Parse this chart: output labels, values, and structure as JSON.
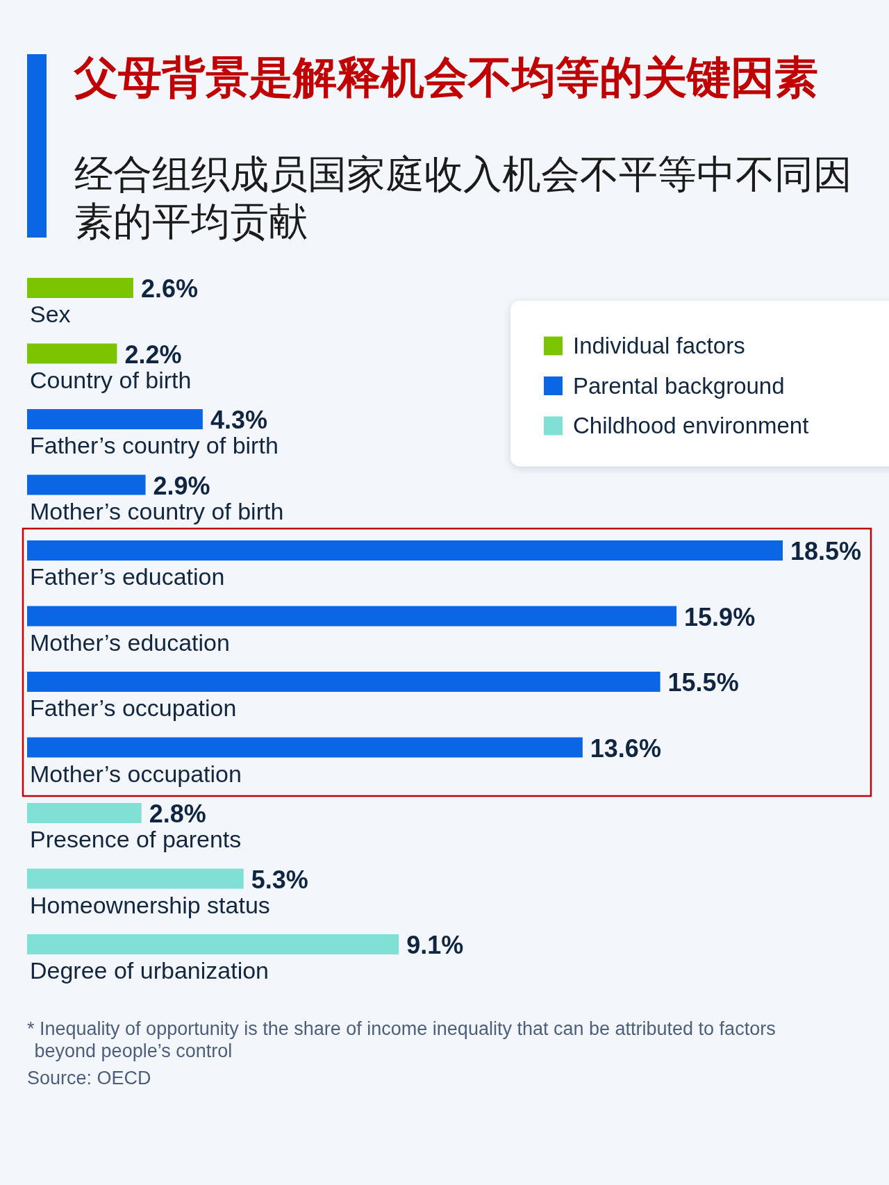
{
  "chart_data": {
    "type": "bar",
    "orientation": "horizontal",
    "title": "父母背景是解释机会不均等的关键因素",
    "subtitle": "经合组织成员国家庭收入机会不平等中不同因素的平均贡献",
    "categories": [
      "Sex",
      "Country of birth",
      "Father’s country of birth",
      "Mother’s country of birth",
      "Father’s education",
      "Mother’s education",
      "Father’s occupation",
      "Mother’s occupation",
      "Presence of parents",
      "Homeownership status",
      "Degree of urbanization"
    ],
    "series": [
      {
        "name": "Individual factors",
        "color": "#7dc400",
        "values": [
          2.6,
          2.2,
          null,
          null,
          null,
          null,
          null,
          null,
          null,
          null,
          null
        ],
        "value_labels": [
          "2.6%",
          "2.2%",
          null,
          null,
          null,
          null,
          null,
          null,
          null,
          null,
          null
        ]
      },
      {
        "name": "Parental background",
        "color": "#0a66e4",
        "values": [
          null,
          null,
          4.3,
          2.9,
          18.5,
          15.9,
          15.5,
          13.6,
          null,
          null,
          null
        ],
        "value_labels": [
          null,
          null,
          "4.3%",
          "2.9%",
          "18.5%",
          "15.9%",
          "15.5%",
          "13.6%",
          null,
          null,
          null
        ]
      },
      {
        "name": "Childhood environment",
        "color": "#80e0d5",
        "values": [
          null,
          null,
          null,
          null,
          null,
          null,
          null,
          null,
          2.8,
          5.3,
          9.1
        ],
        "value_labels": [
          null,
          null,
          null,
          null,
          null,
          null,
          null,
          null,
          "2.8%",
          "5.3%",
          "9.1%"
        ]
      }
    ],
    "legend": "top right",
    "annotations": [
      "* Inequality of opportunity is the share of income inequality that can be attributed to factors beyond people’s control",
      "Source: OECD"
    ]
  }
}
